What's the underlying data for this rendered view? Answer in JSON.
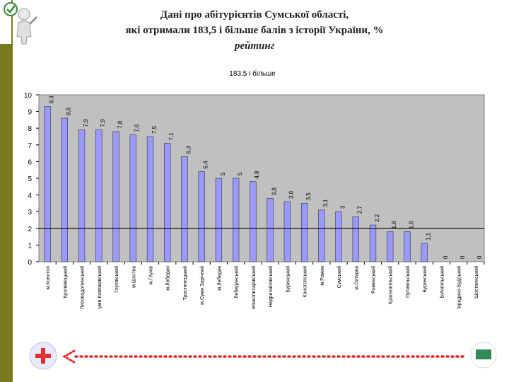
{
  "slide": {
    "title_line1": "Дані про абітурієнтів Сумської області,",
    "title_line2": "які отримали 183,5 і більше  балів з історії України, %",
    "subtitle": "рейтинг"
  },
  "colors": {
    "bar": "#9999ff",
    "plot_bg": "#c0c0c0",
    "sidebar": "#7a7a22",
    "arrow": "#e03030",
    "plus": "#e03030",
    "minus": "#2e8b57"
  },
  "icons": {
    "top_left": "checkmark-person-icon",
    "left_bottom": "plus-icon",
    "right_bottom": "minus-icon",
    "arrow": "dotted-arrow-left-icon"
  },
  "chart_data": {
    "type": "bar",
    "title": "183.5 і більше",
    "ylim": [
      0,
      10
    ],
    "yticks": [
      0,
      1,
      2,
      3,
      4,
      5,
      6,
      7,
      8,
      9,
      10
    ],
    "reference_line": 2,
    "categories": [
      "м.Конотоп",
      "Кролевецький",
      "Липоводолинський",
      "м.Суми Ковпаківський",
      "Глухівський",
      "м.Шостка",
      "м.Глухів",
      "м.Лебедин",
      "Тростянецький",
      "м.Суми Зарічний",
      "м.Лебедин",
      "Лебединський",
      "Великописарівський",
      "Недригайлівський",
      "Буринський",
      "Конотопський",
      "м.Ромни",
      "Сумський",
      "м.Охтирка",
      "Роменський",
      "Краснопільський",
      "Путивльський",
      "Буринський",
      "Білопільський",
      "Середино-Будський",
      "Шосткинський"
    ],
    "values": [
      9.3,
      8.6,
      7.9,
      7.9,
      7.8,
      7.6,
      7.5,
      7.1,
      6.3,
      5.4,
      5,
      5,
      4.8,
      3.8,
      3.6,
      3.5,
      3.1,
      3,
      2.7,
      2.2,
      1.8,
      1.8,
      1.1,
      0,
      0,
      0
    ],
    "labels": [
      "9,3",
      "8,6",
      "7,9",
      "7,9",
      "7,8",
      "7,6",
      "7,5",
      "7,1",
      "6,3",
      "5,4",
      "5",
      "5",
      "4,8",
      "3,8",
      "3,6",
      "3,5",
      "3,1",
      "3",
      "2,7",
      "2,2",
      "1,8",
      "1,8",
      "1,1",
      "0",
      "0",
      "0"
    ]
  }
}
